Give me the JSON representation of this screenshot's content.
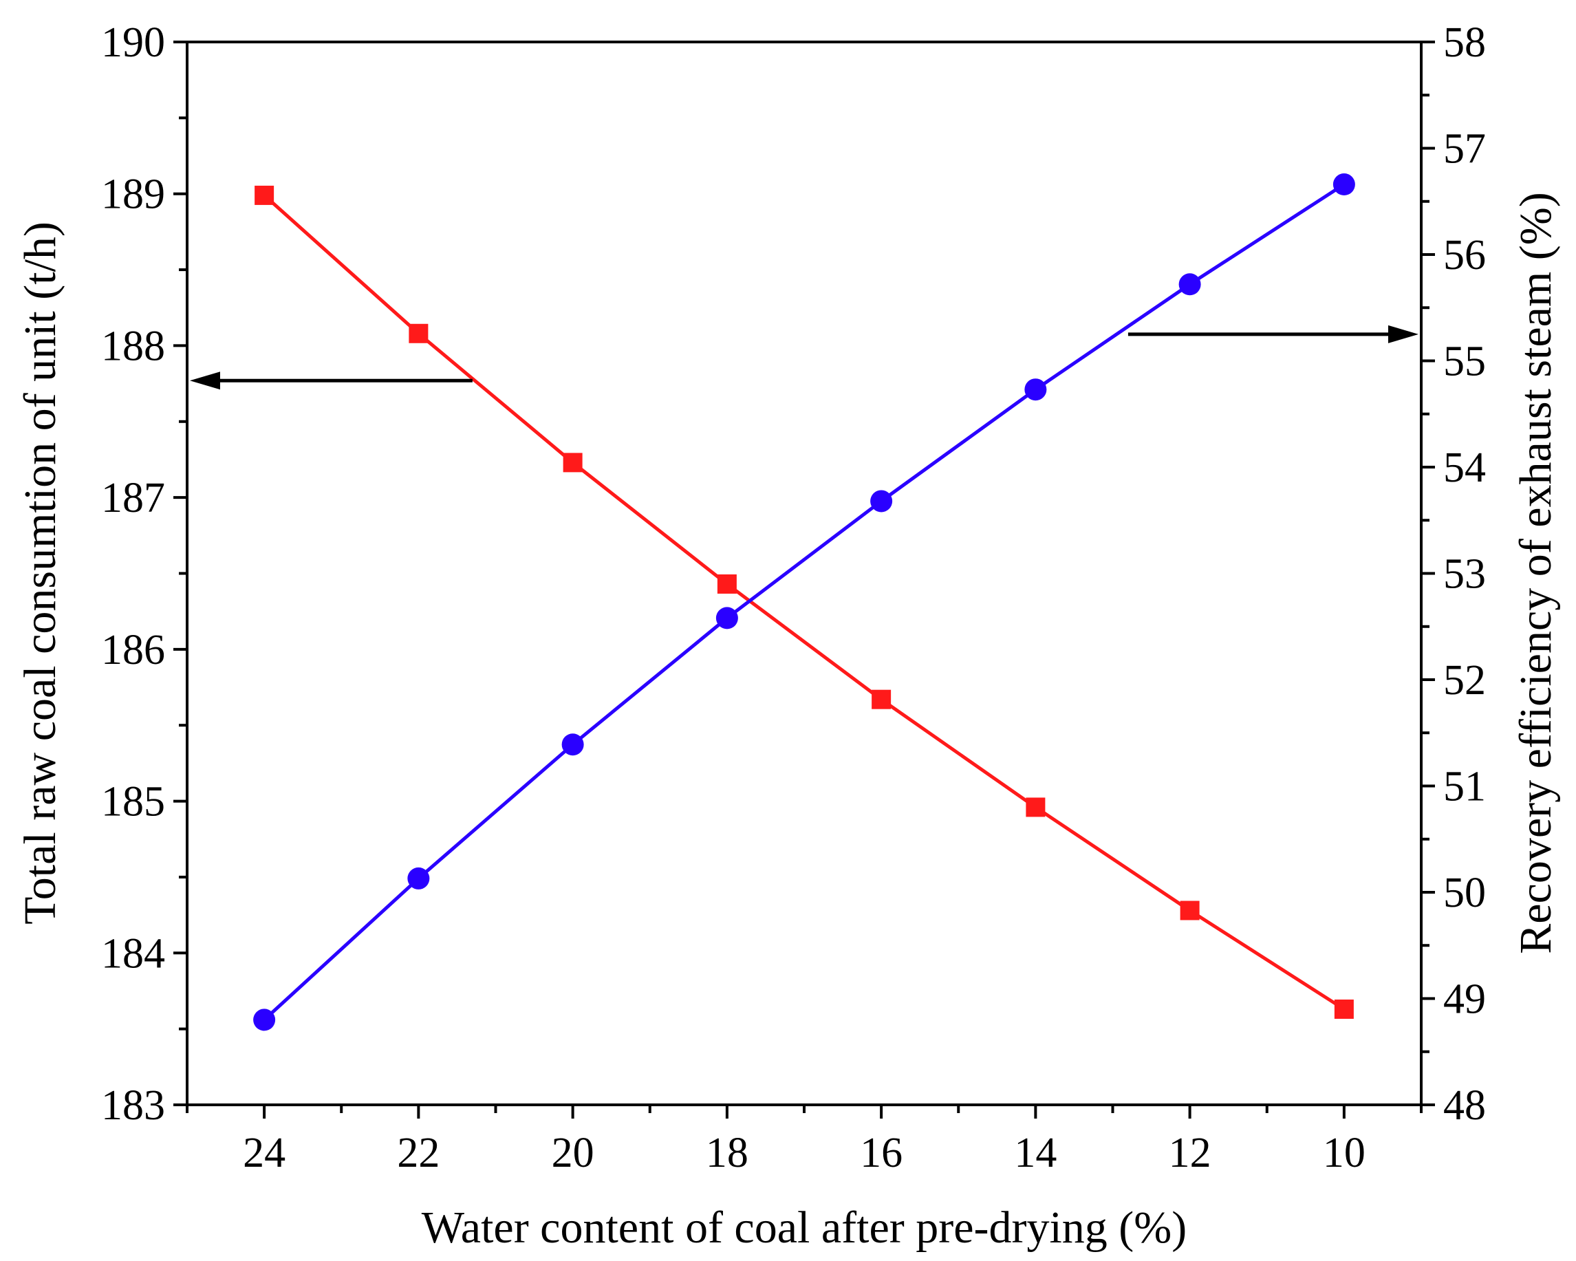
{
  "chart_data": {
    "type": "line",
    "title": "",
    "xlabel": "Water content of coal after pre-drying (%)",
    "ylabel_left": "Total raw coal consumtion of unit (t/h)",
    "ylabel_right": "Recovery efficiency of exhaust steam (%)",
    "x": [
      24,
      22,
      20,
      18,
      16,
      14,
      12,
      10
    ],
    "xlim": [
      25,
      9
    ],
    "xticks": [
      "24",
      "22",
      "20",
      "18",
      "16",
      "14",
      "12",
      "10"
    ],
    "ylim_left": [
      183,
      190
    ],
    "yticks_left": [
      "183",
      "184",
      "185",
      "186",
      "187",
      "188",
      "189",
      "190"
    ],
    "ylim_right": [
      48,
      58
    ],
    "yticks_right": [
      "48",
      "49",
      "50",
      "51",
      "52",
      "53",
      "54",
      "55",
      "56",
      "57",
      "58"
    ],
    "grid": false,
    "series": [
      {
        "name": "Total raw coal consumtion of unit (t/h)",
        "axis": "left",
        "marker": "square",
        "color": "#ff1a1a",
        "values": [
          188.99,
          188.08,
          187.23,
          186.43,
          185.67,
          184.96,
          184.28,
          183.63
        ]
      },
      {
        "name": "Recovery efficiency of exhaust steam (%)",
        "axis": "right",
        "marker": "circle",
        "color": "#2a00ff",
        "values": [
          48.8,
          50.13,
          51.39,
          52.58,
          53.68,
          54.73,
          55.72,
          56.66
        ]
      }
    ],
    "annotations": [
      {
        "type": "arrow",
        "direction": "left",
        "points_to": "left axis",
        "y_left": 187.77,
        "x_from": 21.3,
        "x_to": 25
      },
      {
        "type": "arrow",
        "direction": "right",
        "points_to": "right axis",
        "y_right": 55.25,
        "x_from": 12.8,
        "x_to": 9
      }
    ]
  }
}
